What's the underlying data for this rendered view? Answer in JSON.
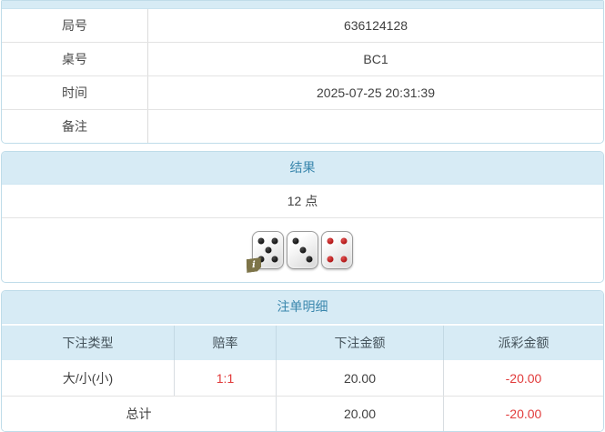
{
  "colors": {
    "panel_header_bg": "#d7ebf5",
    "panel_border": "#bfdce9",
    "header_text": "#3a87ad",
    "negative_text": "#e13b3b",
    "body_text": "#404040"
  },
  "info_table": {
    "rows": [
      {
        "label": "局号",
        "value": "636124128"
      },
      {
        "label": "桌号",
        "value": "BC1"
      },
      {
        "label": "时间",
        "value": "2025-07-25 20:31:39"
      },
      {
        "label": "备注",
        "value": ""
      }
    ]
  },
  "result_panel": {
    "title": "结果",
    "points": "12 点",
    "dice": [
      {
        "value": 5,
        "color": "black",
        "badge": "i"
      },
      {
        "value": 3,
        "color": "black"
      },
      {
        "value": 4,
        "color": "red"
      }
    ]
  },
  "bets_panel": {
    "title": "注单明细",
    "columns": [
      "下注类型",
      "赔率",
      "下注金额",
      "派彩金额"
    ],
    "rows": [
      {
        "type": "大/小(小)",
        "odds": "1:1",
        "bet": "20.00",
        "payout": "-20.00"
      }
    ],
    "total": {
      "label": "总计",
      "bet": "20.00",
      "payout": "-20.00"
    }
  }
}
